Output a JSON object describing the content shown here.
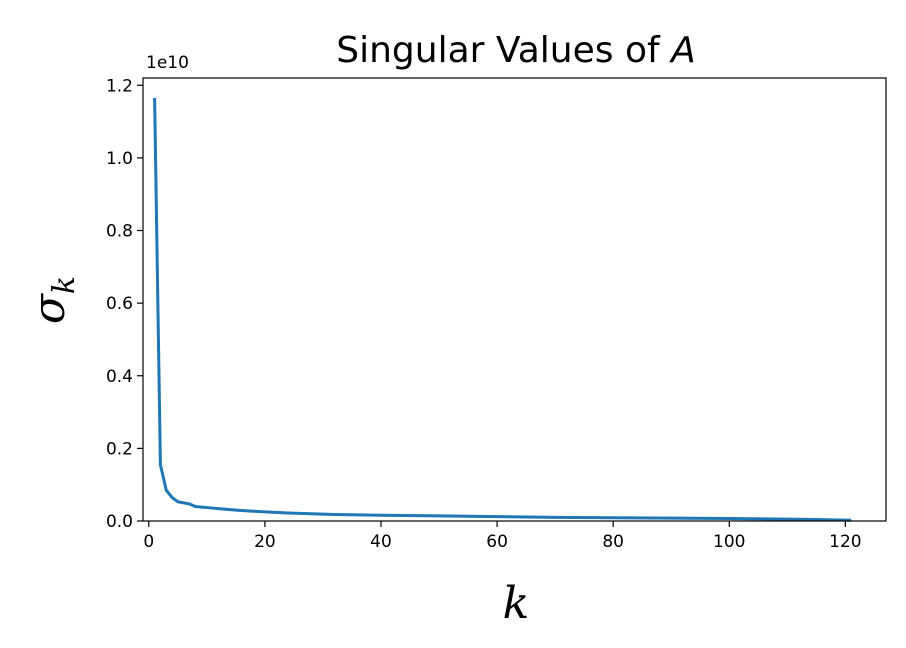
{
  "chart_data": {
    "type": "line",
    "title_prefix": "Singular Values of ",
    "title_var": "A",
    "xlabel": "k",
    "ylabel_symbol": "σ",
    "ylabel_sub": "k",
    "y_offset_label": "1e10",
    "xlim": [
      -1,
      127
    ],
    "ylim": [
      0,
      1.22
    ],
    "xticks": [
      0,
      20,
      40,
      60,
      80,
      100,
      120
    ],
    "xtick_labels": [
      "0",
      "20",
      "40",
      "60",
      "80",
      "100",
      "120"
    ],
    "yticks": [
      0,
      0.2,
      0.4,
      0.6,
      0.8,
      1.0,
      1.2
    ],
    "ytick_labels": [
      "0.0",
      "0.2",
      "0.4",
      "0.6",
      "0.8",
      "1.0",
      "1.2"
    ],
    "series_color": "#1f77b4",
    "x": [
      1,
      2,
      3,
      4,
      5,
      6,
      7,
      8,
      10,
      12,
      15,
      18,
      20,
      24,
      28,
      32,
      40,
      50,
      60,
      70,
      80,
      90,
      100,
      110,
      115,
      121
    ],
    "y": [
      1.165,
      0.155,
      0.085,
      0.065,
      0.053,
      0.05,
      0.047,
      0.04,
      0.037,
      0.034,
      0.03,
      0.027,
      0.025,
      0.022,
      0.02,
      0.018,
      0.016,
      0.014,
      0.012,
      0.01,
      0.009,
      0.008,
      0.007,
      0.005,
      0.004,
      0.002
    ]
  }
}
